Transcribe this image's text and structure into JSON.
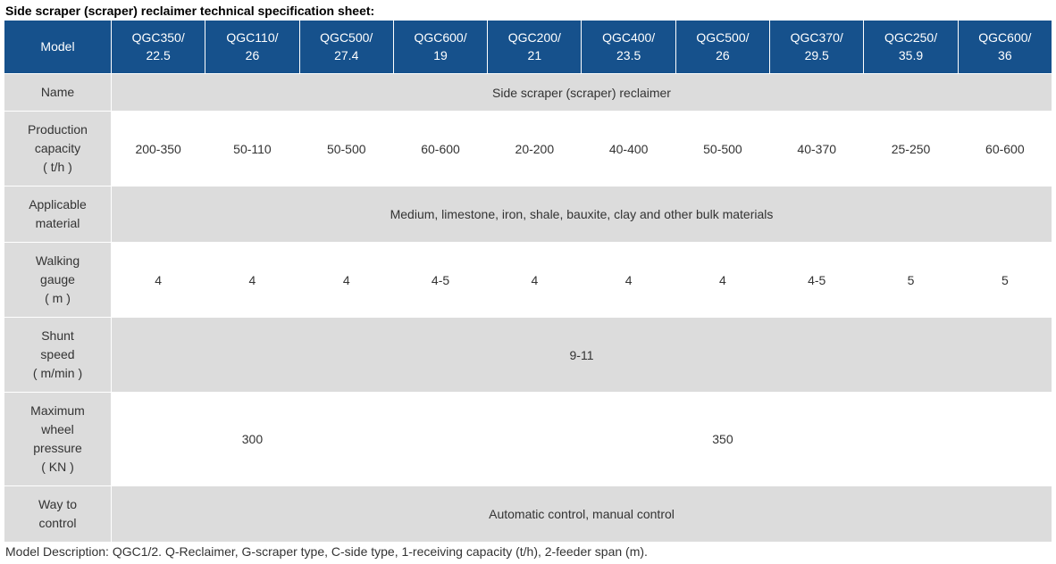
{
  "title": "Side scraper (scraper) reclaimer technical specification sheet:",
  "colors": {
    "header_bg": "#16518c",
    "header_text": "#ffffff",
    "label_bg": "#dcdcdc",
    "row_odd_bg": "#dcdcdc",
    "row_even_bg": "#ffffff",
    "border": "#ffffff",
    "text": "#333333"
  },
  "header": {
    "label": "Model",
    "models": [
      {
        "line1": "QGC350/",
        "line2": "22.5"
      },
      {
        "line1": "QGC110/",
        "line2": "26"
      },
      {
        "line1": "QGC500/",
        "line2": "27.4"
      },
      {
        "line1": "QGC600/",
        "line2": "19"
      },
      {
        "line1": "QGC200/",
        "line2": "21"
      },
      {
        "line1": "QGC400/",
        "line2": "23.5"
      },
      {
        "line1": "QGC500/",
        "line2": "26"
      },
      {
        "line1": "QGC370/",
        "line2": "29.5"
      },
      {
        "line1": "QGC250/",
        "line2": "35.9"
      },
      {
        "line1": "QGC600/",
        "line2": "36"
      }
    ]
  },
  "rows": [
    {
      "label_lines": [
        "Name"
      ],
      "type": "merged_full",
      "value": "Side scraper (scraper) reclaimer",
      "parity": "odd"
    },
    {
      "label_lines": [
        "Production",
        "capacity",
        "( t/h )"
      ],
      "type": "cells",
      "cells": [
        "200-350",
        "50-110",
        "50-500",
        "60-600",
        "20-200",
        "40-400",
        "50-500",
        "40-370",
        "25-250",
        "60-600"
      ],
      "parity": "even"
    },
    {
      "label_lines": [
        "Applicable",
        "material"
      ],
      "type": "merged_full",
      "value": "Medium, limestone, iron, shale, bauxite, clay and other bulk materials",
      "parity": "odd"
    },
    {
      "label_lines": [
        "Walking",
        "gauge",
        "( m )"
      ],
      "type": "cells",
      "cells": [
        "4",
        "4",
        "4",
        "4-5",
        "4",
        "4",
        "4",
        "4-5",
        "5",
        "5"
      ],
      "parity": "even"
    },
    {
      "label_lines": [
        "Shunt",
        "speed",
        "( m/min )"
      ],
      "type": "merged_full",
      "value": "9-11",
      "parity": "odd"
    },
    {
      "label_lines": [
        "Maximum",
        "wheel",
        "pressure",
        "( KN )"
      ],
      "type": "merged_split",
      "splits": [
        {
          "span": 3,
          "value": "300"
        },
        {
          "span": 7,
          "value": "350"
        }
      ],
      "parity": "even"
    },
    {
      "label_lines": [
        "Way to",
        "control"
      ],
      "type": "merged_full",
      "value": "Automatic control, manual control",
      "parity": "odd"
    }
  ],
  "footnote": "Model Description: QGC1/2. Q-Reclaimer, G-scraper type, C-side type, 1-receiving capacity (t/h), 2-feeder span (m)."
}
